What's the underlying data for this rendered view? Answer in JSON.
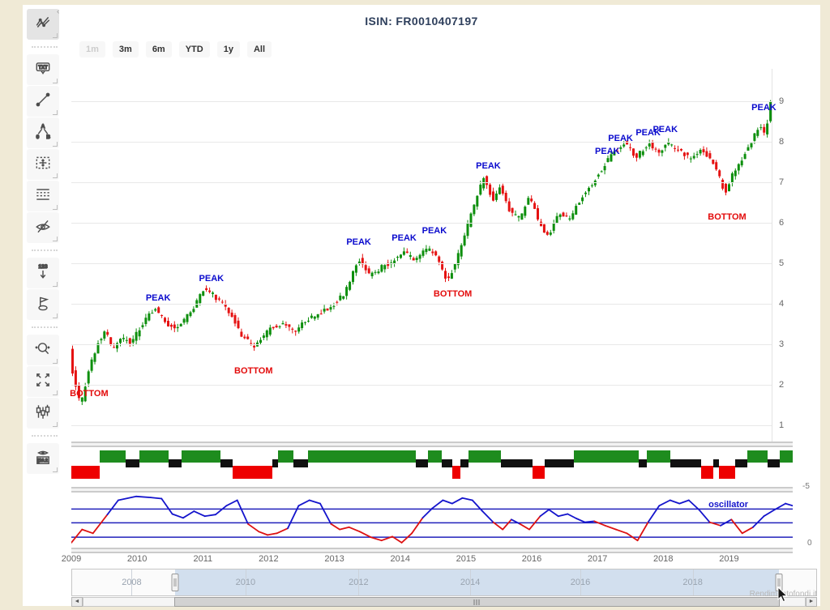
{
  "page": {
    "background": "#f0ead6",
    "panel_background": "#ffffff"
  },
  "header": {
    "title": "ISIN: FR0010407197",
    "title_color": "#2e3f5c"
  },
  "range_selector": {
    "buttons": [
      {
        "label": "1m",
        "enabled": false
      },
      {
        "label": "3m",
        "enabled": true
      },
      {
        "label": "6m",
        "enabled": true
      },
      {
        "label": "YTD",
        "enabled": true
      },
      {
        "label": "1y",
        "enabled": true
      },
      {
        "label": "All",
        "enabled": true
      }
    ]
  },
  "toolbar": {
    "collapse_arrow": "‹",
    "buttons": [
      {
        "name": "indicators",
        "icon": "indicators-icon",
        "active": true
      },
      {
        "separator": true
      },
      {
        "name": "label-annotation",
        "icon": "label-annotation-icon",
        "glyph": "TXT"
      },
      {
        "name": "segment",
        "icon": "segment-icon"
      },
      {
        "name": "elliott-wave",
        "icon": "elliott-wave-icon",
        "glyphs": [
          "A",
          "0",
          "B"
        ]
      },
      {
        "name": "measure",
        "icon": "measure-icon"
      },
      {
        "name": "fibonacci",
        "icon": "fibonacci-icon"
      },
      {
        "name": "toggle-annotations",
        "icon": "eye-slash-icon"
      },
      {
        "separator": true
      },
      {
        "name": "vertical-labels",
        "icon": "vertical-labels-icon",
        "glyph": "123"
      },
      {
        "name": "flags",
        "icon": "flag-icon"
      },
      {
        "separator": true
      },
      {
        "name": "zoom-change",
        "icon": "zoom-icon"
      },
      {
        "name": "full-screen",
        "icon": "fullscreen-icon"
      },
      {
        "name": "series-type",
        "icon": "series-type-icon"
      },
      {
        "separator": true
      },
      {
        "name": "current-price-indicator",
        "icon": "current-price-icon",
        "glyph": "16.2"
      }
    ]
  },
  "chart_data": [
    {
      "type": "candlestick",
      "title": "ISIN: FR0010407197",
      "xlabel": "",
      "ylabel": "",
      "x_range": [
        2009.0,
        2019.66
      ],
      "y_range": [
        0.6,
        9.8
      ],
      "y_ticks": [
        1,
        2,
        3,
        4,
        5,
        6,
        7,
        8,
        9
      ],
      "x_ticks": [
        2009,
        2010,
        2011,
        2012,
        2013,
        2014,
        2015,
        2016,
        2017,
        2018,
        2019
      ],
      "grid": "horizontal-only",
      "candle_count": 220,
      "up_color": "#0d8f0d",
      "down_color": "#e51212",
      "price_path": [
        [
          2009.0,
          2.85
        ],
        [
          2009.06,
          2.2
        ],
        [
          2009.17,
          1.45
        ],
        [
          2009.3,
          2.45
        ],
        [
          2009.45,
          3.1
        ],
        [
          2009.55,
          3.35
        ],
        [
          2009.65,
          2.9
        ],
        [
          2009.8,
          3.15
        ],
        [
          2009.95,
          3.05
        ],
        [
          2010.1,
          3.5
        ],
        [
          2010.3,
          3.9
        ],
        [
          2010.45,
          3.55
        ],
        [
          2010.6,
          3.4
        ],
        [
          2010.75,
          3.6
        ],
        [
          2010.9,
          3.95
        ],
        [
          2011.05,
          4.4
        ],
        [
          2011.2,
          4.2
        ],
        [
          2011.35,
          3.95
        ],
        [
          2011.5,
          3.6
        ],
        [
          2011.6,
          3.25
        ],
        [
          2011.8,
          2.95
        ],
        [
          2011.95,
          3.2
        ],
        [
          2012.1,
          3.45
        ],
        [
          2012.25,
          3.5
        ],
        [
          2012.4,
          3.3
        ],
        [
          2012.6,
          3.6
        ],
        [
          2012.8,
          3.75
        ],
        [
          2013.0,
          3.95
        ],
        [
          2013.2,
          4.3
        ],
        [
          2013.4,
          5.1
        ],
        [
          2013.55,
          4.7
        ],
        [
          2013.7,
          4.85
        ],
        [
          2013.9,
          5.05
        ],
        [
          2014.08,
          5.3
        ],
        [
          2014.25,
          5.05
        ],
        [
          2014.45,
          5.4
        ],
        [
          2014.6,
          5.1
        ],
        [
          2014.75,
          4.55
        ],
        [
          2014.9,
          5.15
        ],
        [
          2015.05,
          5.9
        ],
        [
          2015.2,
          6.7
        ],
        [
          2015.3,
          7.1
        ],
        [
          2015.45,
          6.55
        ],
        [
          2015.55,
          6.9
        ],
        [
          2015.7,
          6.25
        ],
        [
          2015.85,
          6.1
        ],
        [
          2016.0,
          6.65
        ],
        [
          2016.15,
          5.95
        ],
        [
          2016.28,
          5.7
        ],
        [
          2016.45,
          6.25
        ],
        [
          2016.6,
          6.1
        ],
        [
          2016.8,
          6.65
        ],
        [
          2017.0,
          7.1
        ],
        [
          2017.2,
          7.6
        ],
        [
          2017.45,
          8.0
        ],
        [
          2017.6,
          7.6
        ],
        [
          2017.8,
          7.95
        ],
        [
          2017.95,
          7.75
        ],
        [
          2018.1,
          7.95
        ],
        [
          2018.3,
          7.75
        ],
        [
          2018.45,
          7.55
        ],
        [
          2018.6,
          7.85
        ],
        [
          2018.8,
          7.45
        ],
        [
          2018.97,
          6.75
        ],
        [
          2019.1,
          7.25
        ],
        [
          2019.3,
          7.8
        ],
        [
          2019.5,
          8.45
        ],
        [
          2019.58,
          8.1
        ],
        [
          2019.66,
          9.05
        ]
      ],
      "annotations": {
        "peak_label": "PEAK",
        "bottom_label": "BOTTOM",
        "peaks": [
          {
            "x": 2010.32,
            "y": 4.15
          },
          {
            "x": 2011.13,
            "y": 4.62
          },
          {
            "x": 2013.37,
            "y": 5.52
          },
          {
            "x": 2014.06,
            "y": 5.62
          },
          {
            "x": 2014.52,
            "y": 5.8
          },
          {
            "x": 2015.34,
            "y": 7.4
          },
          {
            "x": 2017.15,
            "y": 7.76
          },
          {
            "x": 2017.35,
            "y": 8.08
          },
          {
            "x": 2017.77,
            "y": 8.22
          },
          {
            "x": 2018.03,
            "y": 8.3
          },
          {
            "x": 2019.53,
            "y": 8.85
          }
        ],
        "bottoms": [
          {
            "x": 2009.27,
            "y": 1.78
          },
          {
            "x": 2011.77,
            "y": 2.35
          },
          {
            "x": 2014.8,
            "y": 4.25
          },
          {
            "x": 2018.97,
            "y": 6.15
          }
        ]
      }
    },
    {
      "type": "heatmap",
      "name": "regime-indicator-strip",
      "right_axis_label": "-5",
      "levels": {
        "green": "#1e8c1e",
        "black": "#111111",
        "red": "#ee0000"
      },
      "segments": [
        [
          0.0,
          0.039,
          "red"
        ],
        [
          0.039,
          0.075,
          "green"
        ],
        [
          0.075,
          0.094,
          "black"
        ],
        [
          0.094,
          0.135,
          "green"
        ],
        [
          0.135,
          0.153,
          "black"
        ],
        [
          0.153,
          0.207,
          "green"
        ],
        [
          0.207,
          0.224,
          "black"
        ],
        [
          0.224,
          0.279,
          "red"
        ],
        [
          0.279,
          0.287,
          "black"
        ],
        [
          0.287,
          0.308,
          "green"
        ],
        [
          0.308,
          0.328,
          "black"
        ],
        [
          0.328,
          0.478,
          "green"
        ],
        [
          0.478,
          0.494,
          "black"
        ],
        [
          0.494,
          0.513,
          "green"
        ],
        [
          0.513,
          0.528,
          "black"
        ],
        [
          0.528,
          0.539,
          "red"
        ],
        [
          0.539,
          0.551,
          "black"
        ],
        [
          0.551,
          0.596,
          "green"
        ],
        [
          0.596,
          0.639,
          "black"
        ],
        [
          0.639,
          0.656,
          "red"
        ],
        [
          0.656,
          0.697,
          "black"
        ],
        [
          0.697,
          0.787,
          "green"
        ],
        [
          0.787,
          0.798,
          "black"
        ],
        [
          0.798,
          0.83,
          "green"
        ],
        [
          0.83,
          0.873,
          "black"
        ],
        [
          0.873,
          0.89,
          "red"
        ],
        [
          0.89,
          0.898,
          "black"
        ],
        [
          0.898,
          0.92,
          "red"
        ],
        [
          0.92,
          0.937,
          "black"
        ],
        [
          0.937,
          0.965,
          "green"
        ],
        [
          0.965,
          0.982,
          "black"
        ],
        [
          0.982,
          1.0,
          "green"
        ]
      ]
    },
    {
      "type": "line",
      "name": "oscillator",
      "label": "oscillator",
      "right_axis_label": "0",
      "above_color": "#1414cc",
      "below_color": "#dd1111",
      "threshold_lines": [
        0.7,
        0.45,
        0.19
      ],
      "mid_threshold": 0.45,
      "points": [
        [
          0.0,
          0.09
        ],
        [
          0.015,
          0.33
        ],
        [
          0.03,
          0.26
        ],
        [
          0.05,
          0.6
        ],
        [
          0.065,
          0.86
        ],
        [
          0.09,
          0.93
        ],
        [
          0.11,
          0.91
        ],
        [
          0.125,
          0.89
        ],
        [
          0.14,
          0.61
        ],
        [
          0.155,
          0.54
        ],
        [
          0.17,
          0.66
        ],
        [
          0.185,
          0.57
        ],
        [
          0.2,
          0.6
        ],
        [
          0.215,
          0.76
        ],
        [
          0.23,
          0.86
        ],
        [
          0.245,
          0.43
        ],
        [
          0.26,
          0.29
        ],
        [
          0.272,
          0.23
        ],
        [
          0.285,
          0.26
        ],
        [
          0.3,
          0.35
        ],
        [
          0.315,
          0.76
        ],
        [
          0.33,
          0.86
        ],
        [
          0.345,
          0.8
        ],
        [
          0.36,
          0.43
        ],
        [
          0.372,
          0.33
        ],
        [
          0.385,
          0.37
        ],
        [
          0.4,
          0.29
        ],
        [
          0.415,
          0.19
        ],
        [
          0.43,
          0.13
        ],
        [
          0.445,
          0.2
        ],
        [
          0.458,
          0.09
        ],
        [
          0.472,
          0.26
        ],
        [
          0.487,
          0.54
        ],
        [
          0.5,
          0.71
        ],
        [
          0.515,
          0.86
        ],
        [
          0.528,
          0.8
        ],
        [
          0.542,
          0.9
        ],
        [
          0.556,
          0.86
        ],
        [
          0.57,
          0.66
        ],
        [
          0.585,
          0.46
        ],
        [
          0.598,
          0.33
        ],
        [
          0.61,
          0.51
        ],
        [
          0.622,
          0.43
        ],
        [
          0.635,
          0.33
        ],
        [
          0.65,
          0.57
        ],
        [
          0.662,
          0.69
        ],
        [
          0.675,
          0.57
        ],
        [
          0.688,
          0.61
        ],
        [
          0.7,
          0.53
        ],
        [
          0.712,
          0.46
        ],
        [
          0.725,
          0.48
        ],
        [
          0.74,
          0.4
        ],
        [
          0.755,
          0.33
        ],
        [
          0.77,
          0.26
        ],
        [
          0.785,
          0.13
        ],
        [
          0.8,
          0.47
        ],
        [
          0.815,
          0.76
        ],
        [
          0.83,
          0.86
        ],
        [
          0.843,
          0.8
        ],
        [
          0.856,
          0.86
        ],
        [
          0.87,
          0.69
        ],
        [
          0.885,
          0.46
        ],
        [
          0.9,
          0.4
        ],
        [
          0.915,
          0.51
        ],
        [
          0.93,
          0.26
        ],
        [
          0.945,
          0.37
        ],
        [
          0.96,
          0.57
        ],
        [
          0.975,
          0.69
        ],
        [
          0.99,
          0.8
        ],
        [
          1.0,
          0.76
        ]
      ]
    }
  ],
  "navigator": {
    "year_labels": [
      {
        "label": "2008",
        "f": 0.08
      },
      {
        "label": "2010",
        "f": 0.233
      },
      {
        "label": "2012",
        "f": 0.385
      },
      {
        "label": "2014",
        "f": 0.535
      },
      {
        "label": "2016",
        "f": 0.683
      },
      {
        "label": "2018",
        "f": 0.834
      }
    ],
    "selection": [
      0.138,
      0.95
    ],
    "selected_fill": "#d2dfee"
  },
  "scrollbar": {
    "left_arrow": "◄",
    "right_arrow": "►"
  },
  "watermark": "Rendimentofondi.it"
}
